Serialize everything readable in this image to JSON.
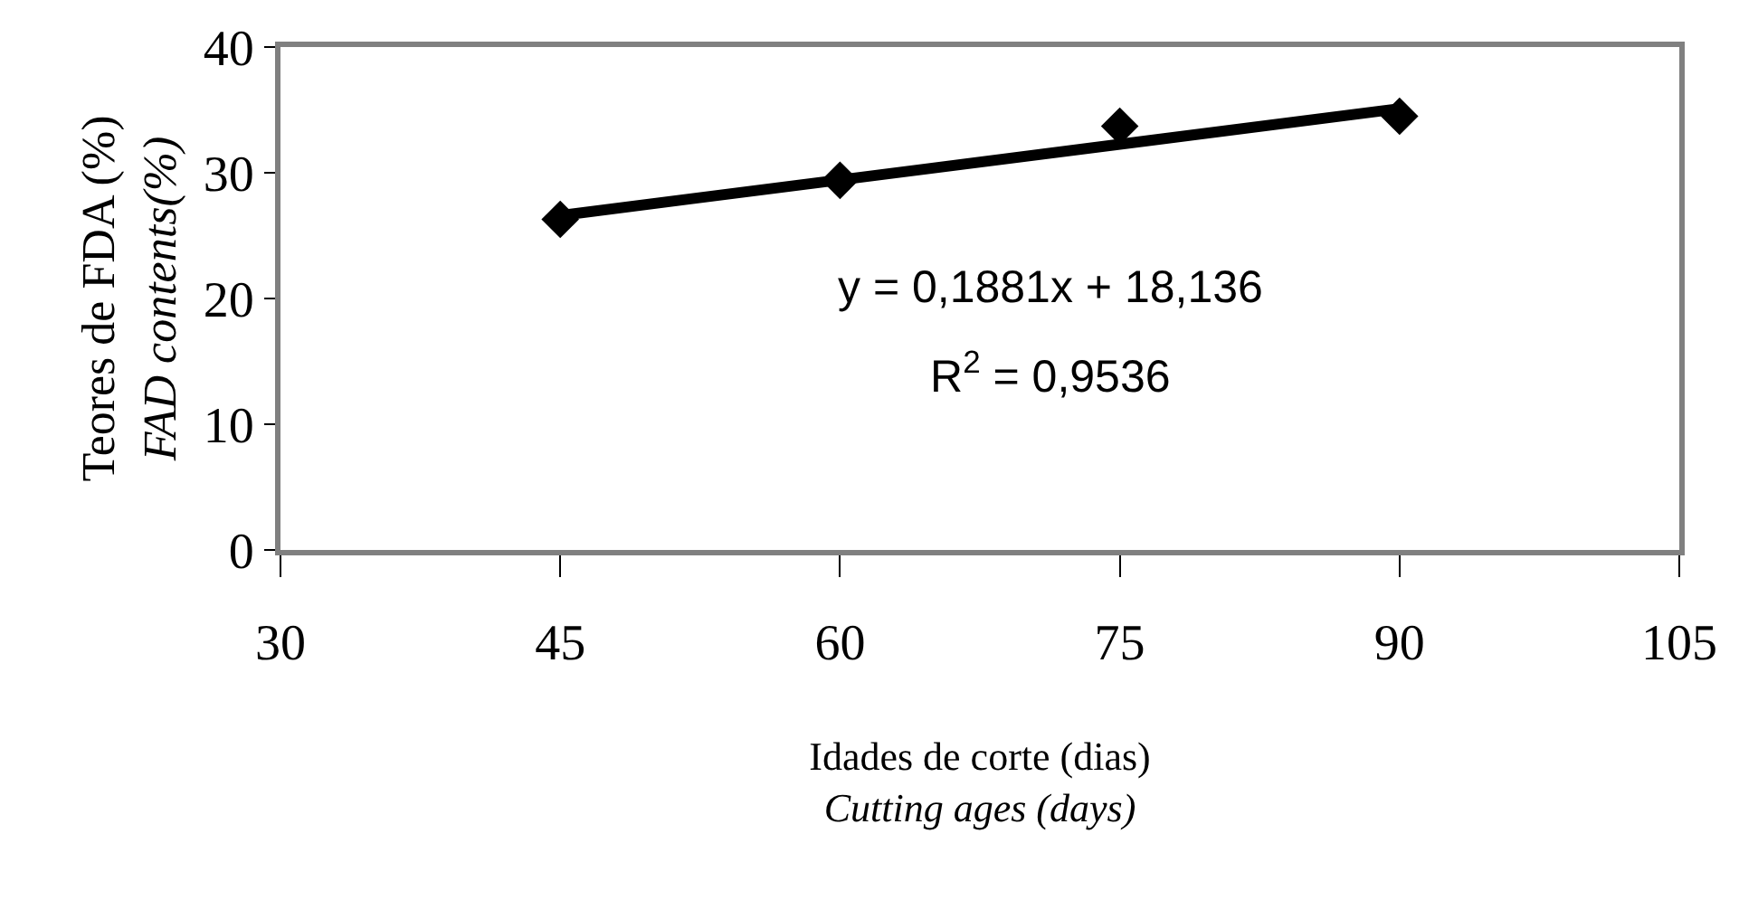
{
  "chart_data": {
    "type": "scatter",
    "xlabel": "Idades de corte (dias)\nCutting ages (days)",
    "ylabel": "Teores de FDA (%)\nFAD contents(%)",
    "xlim": [
      30,
      105
    ],
    "xticks": [
      30,
      45,
      60,
      75,
      90,
      105
    ],
    "ylim": [
      0,
      40
    ],
    "yticks": [
      0,
      10,
      20,
      30,
      40
    ],
    "grid": false,
    "marker": "diamond",
    "series": [
      {
        "type": "scatter",
        "color": "#000000",
        "x": [
          45,
          60,
          75,
          90
        ],
        "values": [
          26.3,
          29.4,
          33.7,
          34.5
        ]
      },
      {
        "type": "line",
        "color": "#000000",
        "line_style": "solid",
        "marker": "none",
        "x": [
          45,
          90
        ],
        "values": [
          26.6,
          35.1
        ]
      }
    ],
    "annotations": [
      "y = 0,1881x + 18,136",
      "R$^{2}$ = 0,9536"
    ]
  }
}
